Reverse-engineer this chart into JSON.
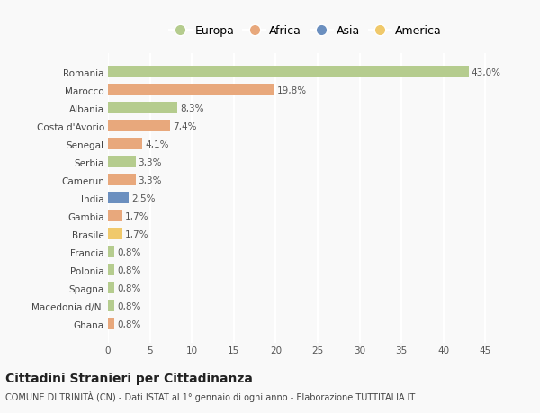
{
  "categories": [
    "Romania",
    "Marocco",
    "Albania",
    "Costa d'Avorio",
    "Senegal",
    "Serbia",
    "Camerun",
    "India",
    "Gambia",
    "Brasile",
    "Francia",
    "Polonia",
    "Spagna",
    "Macedonia d/N.",
    "Ghana"
  ],
  "values": [
    43.0,
    19.8,
    8.3,
    7.4,
    4.1,
    3.3,
    3.3,
    2.5,
    1.7,
    1.7,
    0.8,
    0.8,
    0.8,
    0.8,
    0.8
  ],
  "labels": [
    "43,0%",
    "19,8%",
    "8,3%",
    "7,4%",
    "4,1%",
    "3,3%",
    "3,3%",
    "2,5%",
    "1,7%",
    "1,7%",
    "0,8%",
    "0,8%",
    "0,8%",
    "0,8%",
    "0,8%"
  ],
  "continents": [
    "Europa",
    "Africa",
    "Europa",
    "Africa",
    "Africa",
    "Europa",
    "Africa",
    "Asia",
    "Africa",
    "America",
    "Europa",
    "Europa",
    "Europa",
    "Europa",
    "Africa"
  ],
  "continent_colors": {
    "Europa": "#b5cc8e",
    "Africa": "#e8a87c",
    "Asia": "#6b8fbf",
    "America": "#f0c96b"
  },
  "legend_order": [
    "Europa",
    "Africa",
    "Asia",
    "America"
  ],
  "title": "Cittadini Stranieri per Cittadinanza",
  "subtitle": "COMUNE DI TRINITÀ (CN) - Dati ISTAT al 1° gennaio di ogni anno - Elaborazione TUTTITALIA.IT",
  "xlim": [
    0,
    47
  ],
  "xticks": [
    0,
    5,
    10,
    15,
    20,
    25,
    30,
    35,
    40,
    45
  ],
  "background_color": "#f9f9f9",
  "grid_color": "#ffffff",
  "bar_height": 0.65,
  "label_fontsize": 7.5,
  "tick_fontsize": 7.5,
  "title_fontsize": 10,
  "subtitle_fontsize": 7
}
